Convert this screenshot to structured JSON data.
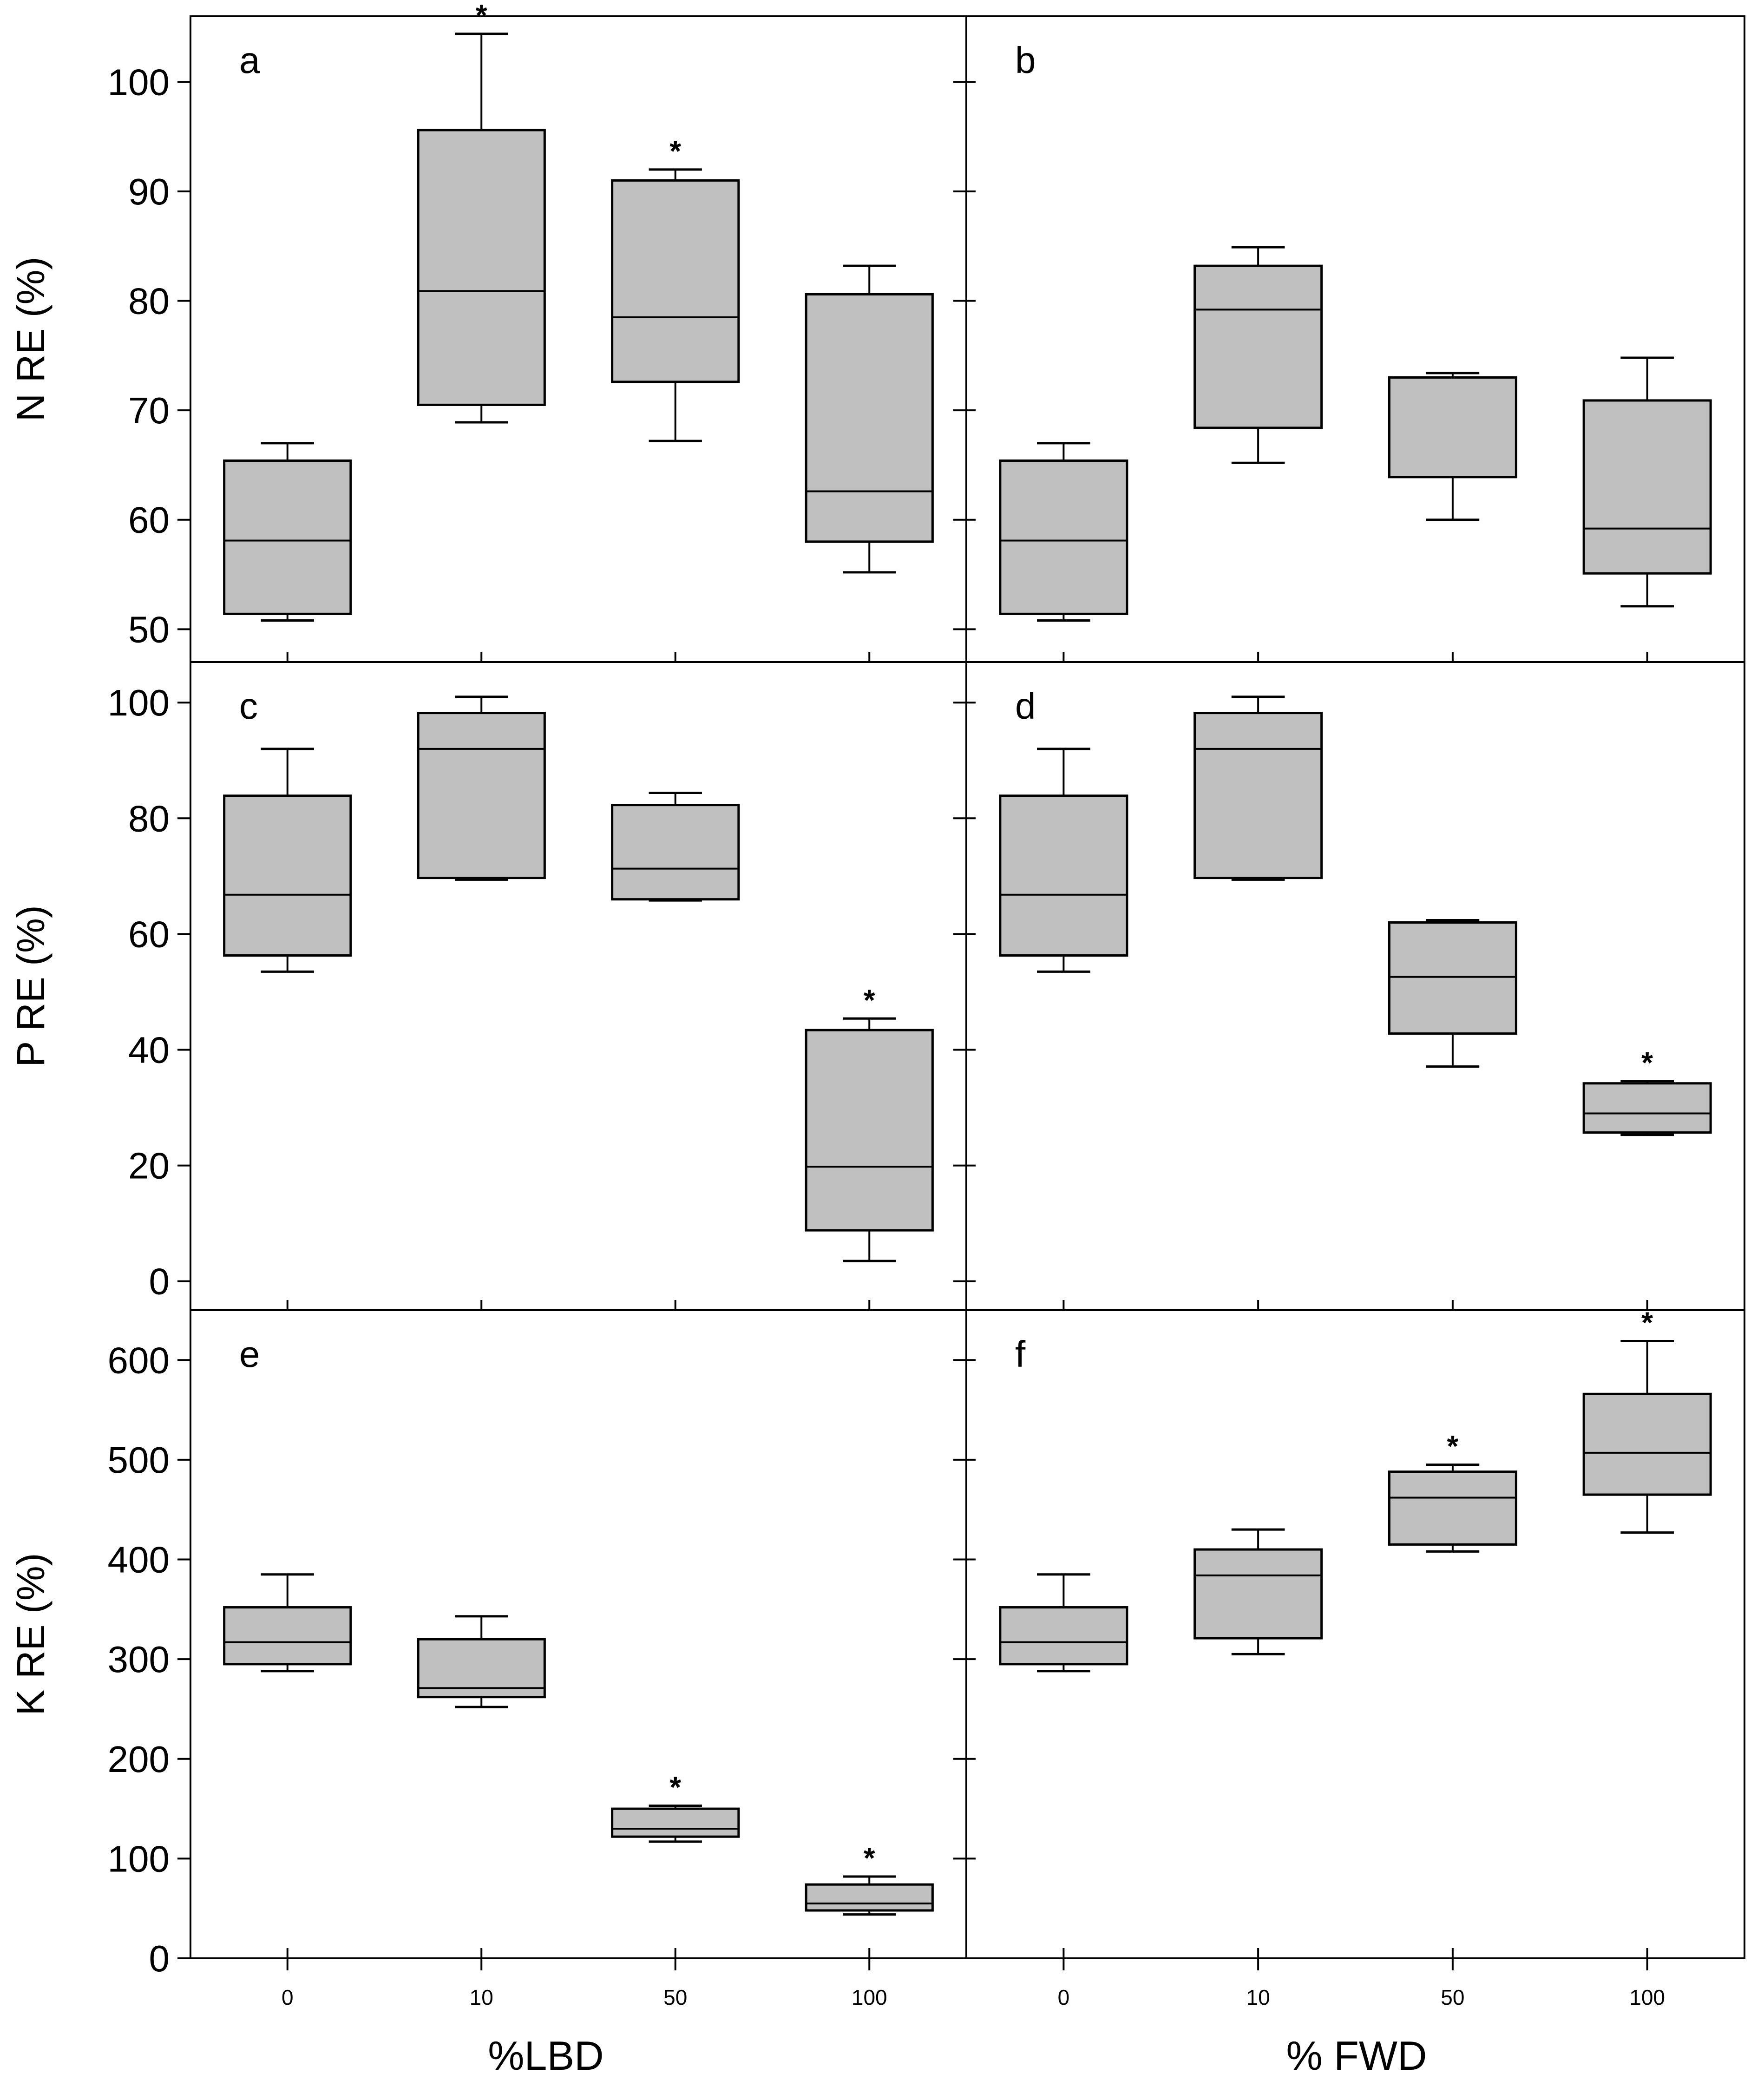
{
  "figure": {
    "x_titles": [
      "%LBD",
      "% FWD"
    ],
    "x_categories": [
      "0",
      "10",
      "50",
      "100"
    ],
    "significance_marker": "*"
  },
  "chart_data": [
    {
      "panel": "a",
      "type": "box",
      "ylabel": "N RE (%)",
      "xlabel": "%LBD",
      "categories": [
        "0",
        "10",
        "50",
        "100"
      ],
      "ylim": [
        47,
        106
      ],
      "yticks": [
        50,
        60,
        70,
        80,
        90,
        100
      ],
      "boxes": [
        {
          "whisker_low": 50.8,
          "q1": 51.4,
          "median": 58.1,
          "q3": 65.4,
          "whisker_high": 67.0,
          "star": false
        },
        {
          "whisker_low": 68.9,
          "q1": 70.5,
          "median": 80.9,
          "q3": 95.6,
          "whisker_high": 104.4,
          "star": true
        },
        {
          "whisker_low": 67.2,
          "q1": 72.6,
          "median": 78.5,
          "q3": 91.0,
          "whisker_high": 92.0,
          "star": true
        },
        {
          "whisker_low": 55.2,
          "q1": 58.0,
          "median": 62.6,
          "q3": 80.6,
          "whisker_high": 83.2,
          "star": false
        }
      ]
    },
    {
      "panel": "b",
      "type": "box",
      "ylabel": "N RE (%)",
      "xlabel": "% FWD",
      "categories": [
        "0",
        "10",
        "50",
        "100"
      ],
      "ylim": [
        47,
        106
      ],
      "yticks": [
        50,
        60,
        70,
        80,
        90,
        100
      ],
      "boxes": [
        {
          "whisker_low": 50.8,
          "q1": 51.4,
          "median": 58.1,
          "q3": 65.4,
          "whisker_high": 67.0,
          "star": false
        },
        {
          "whisker_low": 65.2,
          "q1": 68.4,
          "median": 79.2,
          "q3": 83.2,
          "whisker_high": 84.9,
          "star": false
        },
        {
          "whisker_low": 60.0,
          "q1": 63.9,
          "median": 73.0,
          "q3": 73.0,
          "whisker_high": 73.4,
          "star": false
        },
        {
          "whisker_low": 52.1,
          "q1": 55.1,
          "median": 59.2,
          "q3": 70.9,
          "whisker_high": 74.8,
          "star": false
        }
      ]
    },
    {
      "panel": "c",
      "type": "box",
      "ylabel": "P RE (%)",
      "xlabel": "%LBD",
      "categories": [
        "0",
        "10",
        "50",
        "100"
      ],
      "ylim": [
        -5,
        107
      ],
      "yticks": [
        0,
        20,
        40,
        60,
        80,
        100
      ],
      "boxes": [
        {
          "whisker_low": 53.5,
          "q1": 56.3,
          "median": 66.8,
          "q3": 83.9,
          "whisker_high": 92.0,
          "star": false
        },
        {
          "whisker_low": 69.4,
          "q1": 69.7,
          "median": 92.0,
          "q3": 98.2,
          "whisker_high": 101.0,
          "star": false
        },
        {
          "whisker_low": 65.8,
          "q1": 66.0,
          "median": 71.3,
          "q3": 82.3,
          "whisker_high": 84.4,
          "star": false
        },
        {
          "whisker_low": 3.5,
          "q1": 8.8,
          "median": 19.8,
          "q3": 43.4,
          "whisker_high": 45.4,
          "star": true
        }
      ]
    },
    {
      "panel": "d",
      "type": "box",
      "ylabel": "P RE (%)",
      "xlabel": "% FWD",
      "categories": [
        "0",
        "10",
        "50",
        "100"
      ],
      "ylim": [
        -5,
        107
      ],
      "yticks": [
        0,
        20,
        40,
        60,
        80,
        100
      ],
      "boxes": [
        {
          "whisker_low": 53.5,
          "q1": 56.3,
          "median": 66.8,
          "q3": 83.9,
          "whisker_high": 92.0,
          "star": false
        },
        {
          "whisker_low": 69.4,
          "q1": 69.7,
          "median": 92.0,
          "q3": 98.2,
          "whisker_high": 101.0,
          "star": false
        },
        {
          "whisker_low": 37.1,
          "q1": 42.8,
          "median": 52.6,
          "q3": 62.0,
          "whisker_high": 62.4,
          "star": false
        },
        {
          "whisker_low": 25.3,
          "q1": 25.7,
          "median": 29.0,
          "q3": 34.2,
          "whisker_high": 34.6,
          "star": true
        }
      ]
    },
    {
      "panel": "e",
      "type": "box",
      "ylabel": "K RE (%)",
      "xlabel": "%LBD",
      "categories": [
        "0",
        "10",
        "50",
        "100"
      ],
      "ylim": [
        0,
        650
      ],
      "yticks": [
        0,
        100,
        200,
        300,
        400,
        500,
        600
      ],
      "boxes": [
        {
          "whisker_low": 288,
          "q1": 295,
          "median": 317,
          "q3": 352,
          "whisker_high": 385,
          "star": false
        },
        {
          "whisker_low": 252,
          "q1": 262,
          "median": 271,
          "q3": 320,
          "whisker_high": 343,
          "star": false
        },
        {
          "whisker_low": 117,
          "q1": 122,
          "median": 130,
          "q3": 150,
          "whisker_high": 153,
          "star": true
        },
        {
          "whisker_low": 44,
          "q1": 48,
          "median": 55,
          "q3": 74,
          "whisker_high": 82,
          "star": true
        }
      ]
    },
    {
      "panel": "f",
      "type": "box",
      "ylabel": "K RE (%)",
      "xlabel": "% FWD",
      "categories": [
        "0",
        "10",
        "50",
        "100"
      ],
      "ylim": [
        0,
        650
      ],
      "yticks": [
        0,
        100,
        200,
        300,
        400,
        500,
        600
      ],
      "boxes": [
        {
          "whisker_low": 288,
          "q1": 295,
          "median": 317,
          "q3": 352,
          "whisker_high": 385,
          "star": false
        },
        {
          "whisker_low": 305,
          "q1": 321,
          "median": 384,
          "q3": 410,
          "whisker_high": 430,
          "star": false
        },
        {
          "whisker_low": 408,
          "q1": 415,
          "median": 462,
          "q3": 488,
          "whisker_high": 495,
          "star": true
        },
        {
          "whisker_low": 427,
          "q1": 465,
          "median": 507,
          "q3": 566,
          "whisker_high": 619,
          "star": true
        }
      ]
    }
  ]
}
